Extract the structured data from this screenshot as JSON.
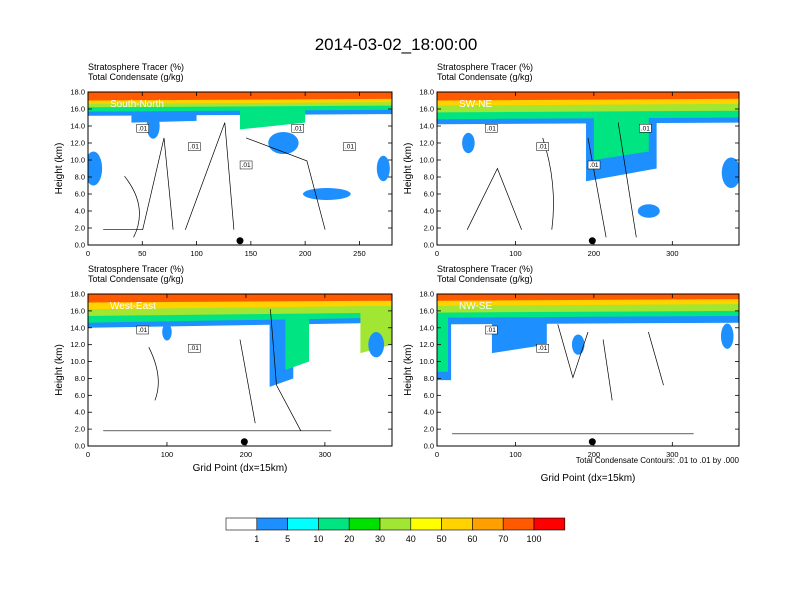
{
  "title": "2014-03-02_18:00:00",
  "colors": {
    "levels": [
      "#ffffff",
      "#1e8fff",
      "#00ffff",
      "#00e582",
      "#00e100",
      "#a0e632",
      "#ffff00",
      "#ffd200",
      "#ffa000",
      "#ff5a00",
      "#ff0000"
    ],
    "contour": "#000000"
  },
  "colorbar": {
    "labels": [
      "1",
      "5",
      "10",
      "20",
      "30",
      "40",
      "50",
      "60",
      "70",
      "100"
    ]
  },
  "footer_note": "Total Condensate Contours: .01 to .01 by .000",
  "chart_data": [
    {
      "type": "heatmap",
      "title": "Stratosphere Tracer   (%)",
      "subtitle": "Total Condensate   (g/kg)",
      "panel_label": "South-North",
      "xlabel": "",
      "ylabel": "Height (km)",
      "xlim": [
        0,
        280
      ],
      "ylim": [
        0,
        18
      ],
      "xticks": [
        "0",
        "50",
        "100",
        "150",
        "200",
        "250"
      ],
      "yticks": [
        "0.0",
        "2.0",
        "4.0",
        "6.0",
        "8.0",
        "10.0",
        "12.0",
        "14.0",
        "16.0",
        "18.0"
      ],
      "marker_x": 140,
      "contour_labels": [
        ".01",
        ".01",
        ".01",
        ".01",
        ".01"
      ]
    },
    {
      "type": "heatmap",
      "title": "Stratosphere Tracer   (%)",
      "subtitle": "Total Condensate   (g/kg)",
      "panel_label": "SW-NE",
      "xlabel": "",
      "ylabel": "Height (km)",
      "xlim": [
        0,
        385
      ],
      "ylim": [
        0,
        18
      ],
      "xticks": [
        "0",
        "100",
        "200",
        "300"
      ],
      "yticks": [
        "0.0",
        "2.0",
        "4.0",
        "6.0",
        "8.0",
        "10.0",
        "12.0",
        "14.0",
        "16.0",
        "18.0"
      ],
      "marker_x": 198,
      "contour_labels": [
        ".01",
        ".01",
        ".01",
        ".01"
      ]
    },
    {
      "type": "heatmap",
      "title": "Stratosphere Tracer   (%)",
      "subtitle": "Total Condensate   (g/kg)",
      "panel_label": "West-East",
      "xlabel": "Grid Point (dx=15km)",
      "ylabel": "Height (km)",
      "xlim": [
        0,
        385
      ],
      "ylim": [
        0,
        18
      ],
      "xticks": [
        "0",
        "100",
        "200",
        "300"
      ],
      "yticks": [
        "0.0",
        "2.0",
        "4.0",
        "6.0",
        "8.0",
        "10.0",
        "12.0",
        "14.0",
        "16.0",
        "18.0"
      ],
      "marker_x": 198,
      "contour_labels": [
        ".01",
        ".01"
      ]
    },
    {
      "type": "heatmap",
      "title": "Stratosphere Tracer   (%)",
      "subtitle": "Total Condensate   (g/kg)",
      "panel_label": "NW-SE",
      "xlabel": "Grid Point (dx=15km)",
      "ylabel": "Height (km)",
      "xlim": [
        0,
        385
      ],
      "ylim": [
        0,
        18
      ],
      "xticks": [
        "0",
        "100",
        "200",
        "300"
      ],
      "yticks": [
        "0.0",
        "2.0",
        "4.0",
        "6.0",
        "8.0",
        "10.0",
        "12.0",
        "14.0",
        "16.0",
        "18.0"
      ],
      "marker_x": 198,
      "contour_labels": [
        ".01",
        ".01"
      ]
    }
  ]
}
